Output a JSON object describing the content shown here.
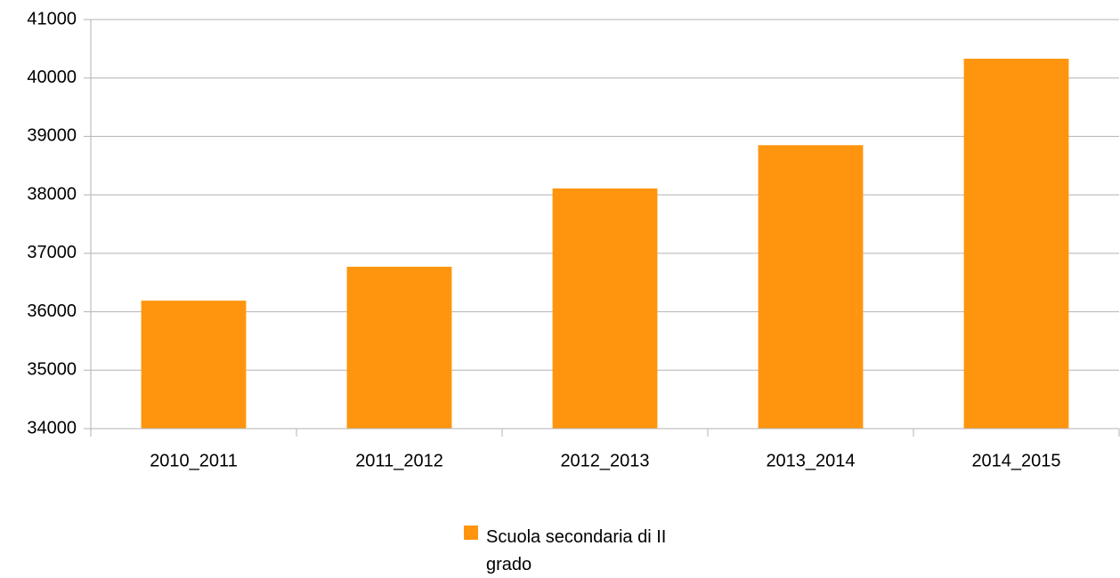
{
  "chart_data": {
    "type": "bar",
    "categories": [
      "2010_2011",
      "2011_2012",
      "2012_2013",
      "2013_2014",
      "2014_2015"
    ],
    "series": [
      {
        "name": "Scuola secondaria di II grado",
        "color": "#ff950e",
        "values": [
          36190,
          36770,
          38110,
          38850,
          40330
        ]
      }
    ],
    "ylim": [
      34000,
      41000
    ],
    "yticks": [
      34000,
      35000,
      36000,
      37000,
      38000,
      39000,
      40000,
      41000
    ],
    "grid": true,
    "legend": "bottom"
  }
}
